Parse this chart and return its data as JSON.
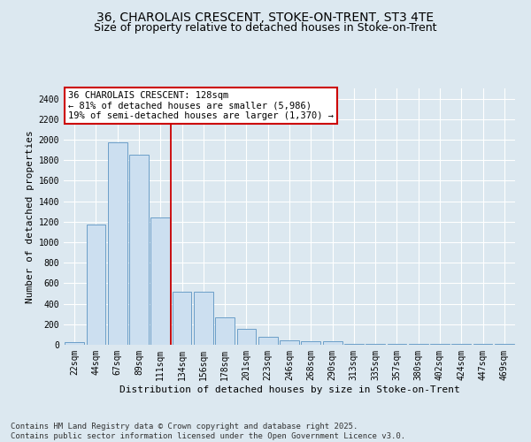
{
  "title_line1": "36, CHAROLAIS CRESCENT, STOKE-ON-TRENT, ST3 4TE",
  "title_line2": "Size of property relative to detached houses in Stoke-on-Trent",
  "xlabel": "Distribution of detached houses by size in Stoke-on-Trent",
  "ylabel": "Number of detached properties",
  "categories": [
    "22sqm",
    "44sqm",
    "67sqm",
    "89sqm",
    "111sqm",
    "134sqm",
    "156sqm",
    "178sqm",
    "201sqm",
    "223sqm",
    "246sqm",
    "268sqm",
    "290sqm",
    "313sqm",
    "335sqm",
    "357sqm",
    "380sqm",
    "402sqm",
    "424sqm",
    "447sqm",
    "469sqm"
  ],
  "values": [
    25,
    1175,
    1975,
    1855,
    1245,
    515,
    515,
    270,
    155,
    80,
    45,
    35,
    35,
    10,
    5,
    5,
    5,
    5,
    5,
    5,
    5
  ],
  "bar_fill_color": "#ccdff0",
  "bar_edge_color": "#6b9ec8",
  "vline_color": "#cc0000",
  "annotation_text": "36 CHAROLAIS CRESCENT: 128sqm\n← 81% of detached houses are smaller (5,986)\n19% of semi-detached houses are larger (1,370) →",
  "annotation_box_facecolor": "#ffffff",
  "annotation_box_edgecolor": "#cc0000",
  "ylim": [
    0,
    2500
  ],
  "yticks": [
    0,
    200,
    400,
    600,
    800,
    1000,
    1200,
    1400,
    1600,
    1800,
    2000,
    2200,
    2400
  ],
  "background_color": "#dce8f0",
  "grid_color": "#ffffff",
  "footer_line1": "Contains HM Land Registry data © Crown copyright and database right 2025.",
  "footer_line2": "Contains public sector information licensed under the Open Government Licence v3.0.",
  "title_fontsize": 10,
  "subtitle_fontsize": 9,
  "ylabel_fontsize": 8,
  "xlabel_fontsize": 8,
  "tick_fontsize": 7,
  "annotation_fontsize": 7.5,
  "footer_fontsize": 6.5,
  "vline_x": 4.5
}
